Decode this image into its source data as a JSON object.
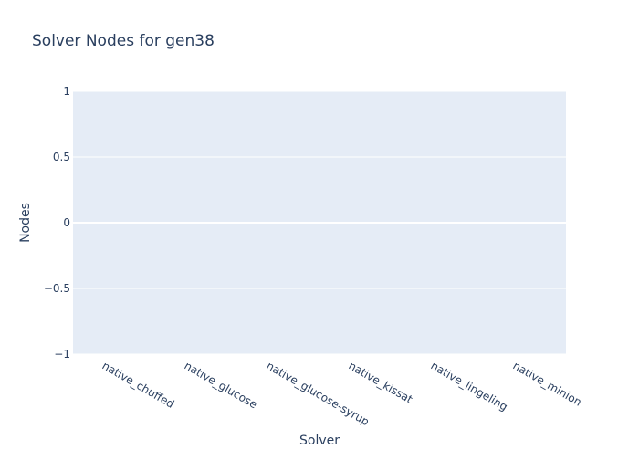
{
  "chart_data": {
    "type": "bar",
    "title": "Solver Nodes for gen38",
    "xlabel": "Solver",
    "ylabel": "Nodes",
    "categories": [
      "native_chuffed",
      "native_glucose",
      "native_glucose-syrup",
      "native_kissat",
      "native_lingeling",
      "native_minion"
    ],
    "values": [
      0,
      0,
      0,
      0,
      0,
      0
    ],
    "ylim": [
      -1,
      1
    ],
    "yticks": [
      -1,
      -0.5,
      0,
      0.5,
      1
    ],
    "ytick_labels": [
      "−1",
      "−0.5",
      "0",
      "0.5",
      "1"
    ],
    "grid": true,
    "legend": "none"
  },
  "colors": {
    "plot_background": "#e5ecf6",
    "grid": "#ffffff",
    "text": "#2a3f5f",
    "bar": "#636efa"
  }
}
